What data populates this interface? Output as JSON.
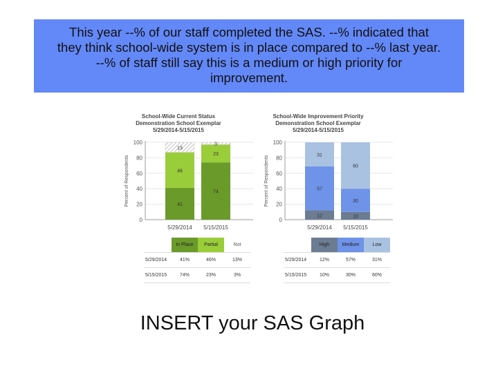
{
  "banner": {
    "line1": "This year --% of our staff completed the SAS.  --% indicated that",
    "line2": "they think school-wide system is in place compared to --% last year.",
    "line3": "--% of staff still say this is a medium or high priority for",
    "line4": "improvement."
  },
  "caption": "INSERT your SAS Graph",
  "chart_data": [
    {
      "type": "bar",
      "stacked": true,
      "title": [
        "School-Wide Current Status",
        "Demonstration School Exemplar",
        "5/29/2014-5/15/2015"
      ],
      "ylabel": "Percent of Respondents",
      "ylim": [
        0,
        100
      ],
      "yticks": [
        0,
        20,
        40,
        60,
        80,
        100
      ],
      "categories": [
        "5/29/2014",
        "5/15/2015"
      ],
      "series": [
        {
          "name": "In Place",
          "values": [
            41,
            74
          ],
          "color": "#6a9a2a"
        },
        {
          "name": "Partial",
          "values": [
            46,
            23
          ],
          "color": "#9acd3a"
        },
        {
          "name": "Not",
          "values": [
            13,
            3
          ],
          "color": "hatch"
        }
      ],
      "table": {
        "headers": [
          "In Place",
          "Partial",
          "Not"
        ],
        "header_colors": [
          "#6a9a2a",
          "#9acd3a",
          "#ffffff"
        ],
        "rows": [
          {
            "label": "5/29/2014",
            "cells": [
              "41%",
              "46%",
              "13%"
            ]
          },
          {
            "label": "5/15/2015",
            "cells": [
              "74%",
              "23%",
              "3%"
            ]
          }
        ]
      }
    },
    {
      "type": "bar",
      "stacked": true,
      "title": [
        "School-Wide Improvement Priority",
        "Demonstration School Exemplar",
        "5/29/2014-5/15/2015"
      ],
      "ylabel": "Percent of Respondents",
      "ylim": [
        0,
        100
      ],
      "yticks": [
        0,
        20,
        40,
        60,
        80,
        100
      ],
      "categories": [
        "5/29/2014",
        "5/15/2015"
      ],
      "series": [
        {
          "name": "High",
          "values": [
            12,
            10
          ],
          "color": "#6b7c93"
        },
        {
          "name": "Medium",
          "values": [
            57,
            30
          ],
          "color": "#6e93e8"
        },
        {
          "name": "Low",
          "values": [
            31,
            60
          ],
          "color": "#aac2e2"
        }
      ],
      "table": {
        "headers": [
          "High",
          "Medium",
          "Low"
        ],
        "header_colors": [
          "#6b7c93",
          "#6e93e8",
          "#aac2e2"
        ],
        "rows": [
          {
            "label": "5/29/2014",
            "cells": [
              "12%",
              "57%",
              "31%"
            ]
          },
          {
            "label": "5/15/2015",
            "cells": [
              "10%",
              "30%",
              "60%"
            ]
          }
        ]
      }
    }
  ]
}
